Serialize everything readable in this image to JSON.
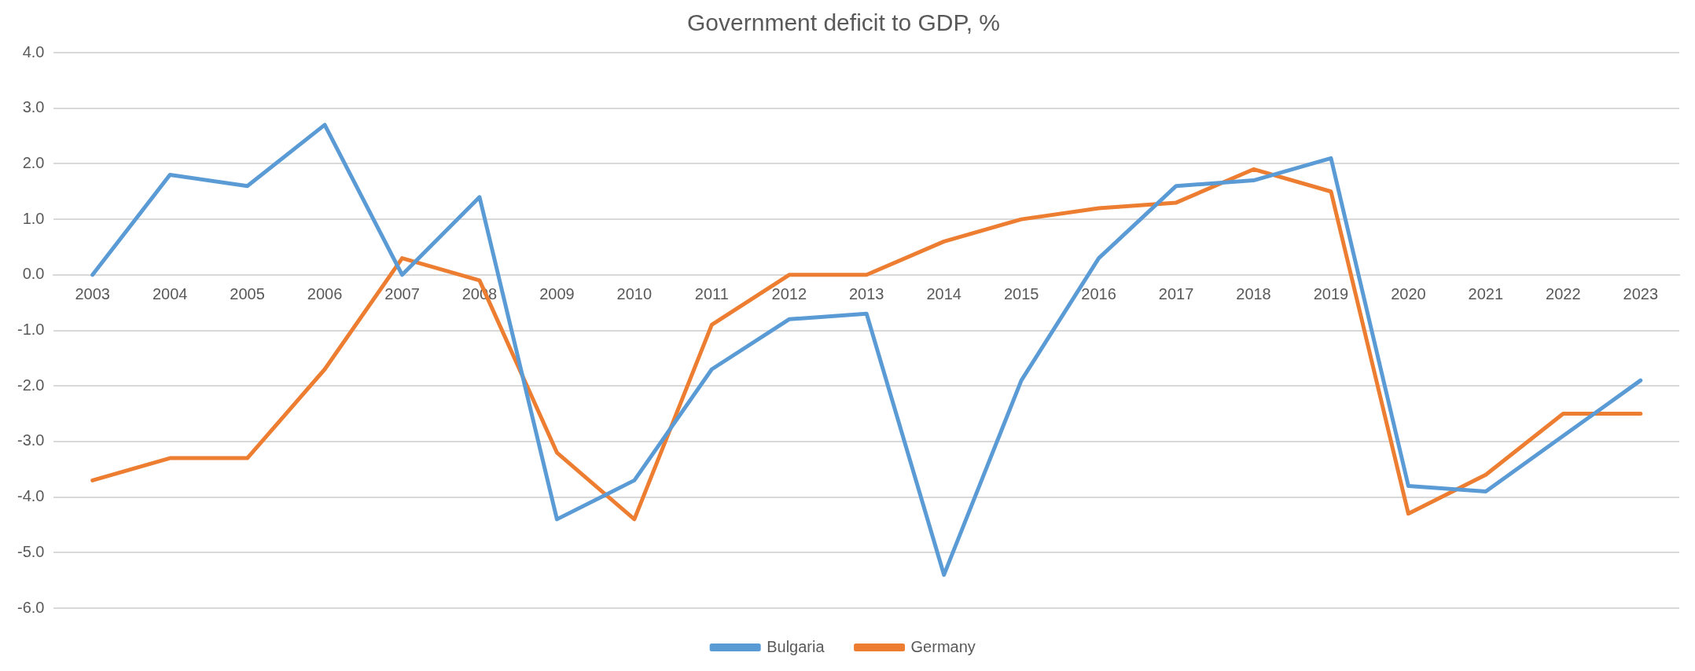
{
  "chart_data": {
    "type": "line",
    "title": "Government deficit to GDP, %",
    "categories": [
      "2003",
      "2004",
      "2005",
      "2006",
      "2007",
      "2008",
      "2009",
      "2010",
      "2011",
      "2012",
      "2013",
      "2014",
      "2015",
      "2016",
      "2017",
      "2018",
      "2019",
      "2020",
      "2021",
      "2022",
      "2023"
    ],
    "series": [
      {
        "name": "Bulgaria",
        "color": "#5b9bd5",
        "values": [
          0.0,
          1.8,
          1.6,
          2.7,
          0.0,
          1.4,
          -4.4,
          -3.7,
          -1.7,
          -0.8,
          -0.7,
          -5.4,
          -1.9,
          0.3,
          1.6,
          1.7,
          2.1,
          -3.8,
          -3.9,
          -2.9,
          -1.9
        ]
      },
      {
        "name": "Germany",
        "color": "#ed7d31",
        "values": [
          -3.7,
          -3.3,
          -3.3,
          -1.7,
          0.3,
          -0.1,
          -3.2,
          -4.4,
          -0.9,
          0.0,
          0.0,
          0.6,
          1.0,
          1.2,
          1.3,
          1.9,
          1.5,
          -4.3,
          -3.6,
          -2.5,
          -2.5
        ]
      }
    ],
    "ylim": [
      -6,
      4
    ],
    "yticks": [
      {
        "value": -6,
        "label": "-6.0"
      },
      {
        "value": -5,
        "label": "-5.0"
      },
      {
        "value": -4,
        "label": "-4.0"
      },
      {
        "value": -3,
        "label": "-3.0"
      },
      {
        "value": -2,
        "label": "-2.0"
      },
      {
        "value": -1,
        "label": "-1.0"
      },
      {
        "value": 0,
        "label": "0.0"
      },
      {
        "value": 1,
        "label": "1.0"
      },
      {
        "value": 2,
        "label": "2.0"
      },
      {
        "value": 3,
        "label": "3.0"
      },
      {
        "value": 4,
        "label": "4.0"
      }
    ],
    "grid": "y",
    "legend": "bottom",
    "marker": "none",
    "line_style": "solid"
  }
}
